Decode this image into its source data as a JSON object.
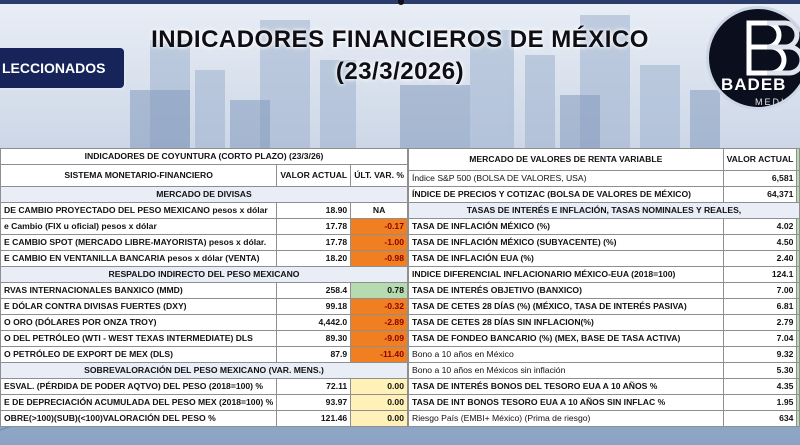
{
  "header": {
    "title": "INDICADORES FINANCIEROS DE MÉXICO",
    "date": "(23/3/2026)",
    "banner": "LECCIONADOS",
    "logo_text": "BADEB",
    "logo_sub": "MEDIA"
  },
  "left_table": {
    "title": "INDICADORES DE COYUNTURA (CORTO PLAZO) (23/3/26)",
    "section_label": "SISTEMA MONETARIO-FINANCIERO",
    "col_value": "VALOR ACTUAL",
    "col_change": "ÚLT. VAR. %",
    "groups": [
      {
        "title": "MERCADO DE DIVISAS",
        "rows": [
          {
            "label": "DE CAMBIO PROYECTADO DEL PESO MEXICANO pesos x dólar",
            "value": "18.90",
            "change": "NA",
            "style": "na"
          },
          {
            "label": "e Cambio (FIX u oficial) pesos x dólar",
            "value": "17.78",
            "change": "-0.17",
            "style": "neg"
          },
          {
            "label": "E CAMBIO SPOT (MERCADO LIBRE-MAYORISTA) pesos x dólar.",
            "value": "17.78",
            "change": "-1.00",
            "style": "neg"
          },
          {
            "label": "E CAMBIO EN VENTANILLA BANCARIA pesos x dólar (VENTA)",
            "value": "18.20",
            "change": "-0.98",
            "style": "neg"
          }
        ]
      },
      {
        "title": "RESPALDO INDIRECTO DEL PESO MEXICANO",
        "rows": [
          {
            "label": "RVAS INTERNACIONALES BANXICO (MMD)",
            "value": "258.4",
            "change": "0.78",
            "style": "pos"
          },
          {
            "label": "E DÓLAR CONTRA DIVISAS FUERTES (DXY)",
            "value": "99.18",
            "change": "-0.32",
            "style": "neg"
          },
          {
            "label": "O ORO (DÓLARES POR ONZA TROY)",
            "value": "4,442.0",
            "change": "-2.89",
            "style": "neg"
          },
          {
            "label": "O DEL PETRÓLEO (WTI - WEST TEXAS INTERMEDIATE) DLS",
            "value": "89.30",
            "change": "-9.09",
            "style": "neg"
          },
          {
            "label": "O PETRÓLEO DE EXPORT DE MEX (DLS)",
            "value": "87.9",
            "change": "-11.40",
            "style": "neg"
          }
        ]
      },
      {
        "title": "SOBREVALORACIÓN DEL PESO MEXICANO (VAR. MENS.)",
        "rows": [
          {
            "label": "ESVAL. (PÉRDIDA DE PODER AQTVO) DEL PESO (2018=100) %",
            "value": "72.11",
            "change": "0.00",
            "style": "zero"
          },
          {
            "label": "E DE DEPRECIACIÓN ACUMULADA DEL PESO MEX (2018=100) %",
            "value": "93.97",
            "change": "0.00",
            "style": "zero"
          },
          {
            "label": "OBRE(>100)(SUB)(<100)VALORACIÓN DEL PESO  %",
            "value": "121.46",
            "change": "0.00",
            "style": "zero"
          }
        ]
      }
    ]
  },
  "right_table": {
    "title": "MERCADO DE VALORES DE RENTA VARIABLE",
    "col_value": "VALOR ACTUAL",
    "rows_top": [
      {
        "label": "Índice S&P 500 (BOLSA DE VALORES, USA)",
        "value": "6,581",
        "bold": false
      },
      {
        "label": "ÍNDICE DE PRECIOS Y COTIZAC (BOLSA DE VALORES DE MÉXICO)",
        "value": "64,371",
        "bold": true
      }
    ],
    "section2": "TASAS DE INTERÉS E INFLACIÓN, TASAS NOMINALES Y REALES,",
    "rows_bottom": [
      {
        "label": "TASA DE INFLACIÓN MÉXICO (%)",
        "value": "4.02",
        "bold": true
      },
      {
        "label": "TASA DE INFLACIÓN MÉXICO (SUBYACENTE) (%)",
        "value": "4.50",
        "bold": true
      },
      {
        "label": "TASA DE INFLACIÓN EUA (%)",
        "value": "2.40",
        "bold": true
      },
      {
        "label": "INDICE DIFERENCIAL INFLACIONARIO MÉXICO-EUA (2018=100)",
        "value": "124.1",
        "bold": true
      },
      {
        "label": "TASA DE INTERÉS OBJETIVO (BANXICO)",
        "value": "7.00",
        "bold": true
      },
      {
        "label": "TASA DE CETES 28 DÍAS (%) (MÉXICO, TASA DE INTERÉS PASIVA)",
        "value": "6.81",
        "bold": true
      },
      {
        "label": "TASA DE CETES 28 DÍAS SIN INFLACION(%)",
        "value": "2.79",
        "bold": true
      },
      {
        "label": "TASA DE FONDEO BANCARIO (%) (MEX, BASE DE TASA ACTIVA)",
        "value": "7.04",
        "bold": true
      },
      {
        "label": "Bono a 10 años en México",
        "value": "9.32",
        "bold": false
      },
      {
        "label": "Bono a 10 años en Méxicos sin inflación",
        "value": "5.30",
        "bold": false
      },
      {
        "label": "TASA DE INTERÉS BONOS DEL TESORO EUA A 10 AÑOS %",
        "value": "4.35",
        "bold": true
      },
      {
        "label": "TASA DE INT BONOS TESORO EUA A 10 AÑOS SIN INFLAC %",
        "value": "1.95",
        "bold": true
      },
      {
        "label": "Riesgo País (EMBI+ México) (Prima de riesgo)",
        "value": "634",
        "bold": false
      }
    ]
  }
}
